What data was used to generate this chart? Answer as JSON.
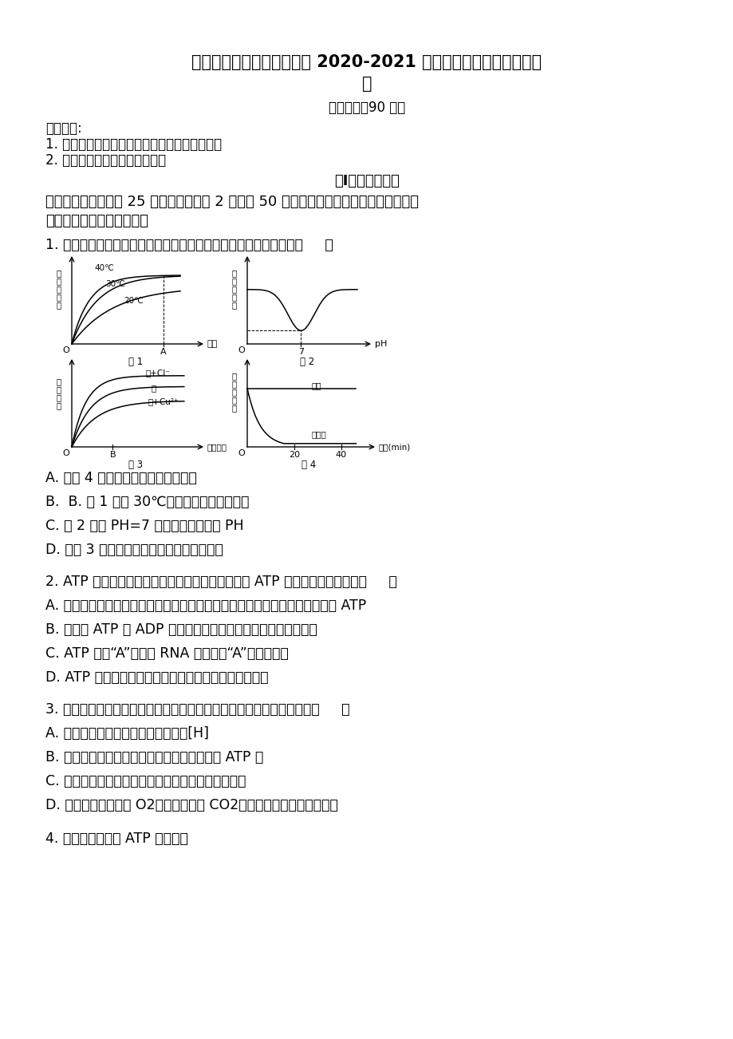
{
  "bg_color": "#ffffff",
  "title_line1": "安徽省淮北市树人高级中学 2020-2021 学年高一生物下学期期中试",
  "title_line2": "题",
  "exam_time": "考试时间：90 分钟",
  "notes_header": "注意事项:",
  "note1": "1. 答题前填写好自己的姓名、班级、考号等信息",
  "note2": "2. 请将答案正确填写在答题卡上",
  "section1_title": "第I卷（选择题）",
  "section1_intro": "一、选择题：本题共 25 个小题，每小题 2 分。共 50 分，在每小题给出的四个选项中，只",
  "section1_intro2": "有一项是符合题目要求的。",
  "q1": "1. 用某种酶进行有关实验的结果如图所示，下列有关说法错误的是（     ）",
  "q1_A": "A. 由图 4 实验结果可知酶具有专一性",
  "q1_B": "B.  B. 图 1 表明 30℃是该酶的最适催化温度",
  "q1_C": "C. 图 2 表明 PH=7 是该酶的最适催化 PH",
  "q1_D": "D. 由图 3 实验结果可知氯离子是酶的激活剂",
  "q2": "2. ATP 在生命活动中发挥着重要的作用，下列有关 ATP 的叙述，不正确的是（     ）",
  "q2_A": "A. 人体成熟的红细胞、蛙的红细胞、鸡的红细胞中均能进行的生理活动是合成 ATP",
  "q2_B": "B. 细胞内 ATP 与 ADP 相互转能量的供应机制，是生物界的共性",
  "q2_C": "C. ATP 中的'A'与构成 RNA 中的碱基'A'是同一物质",
  "q2_D": "D. ATP 是生物体内的直接能源物质，在细胞内含量很少",
  "q3": "3. 关于人体细胞以葡萄糖为底物进行的细胞呼吸过程的叙述，错误的是（     ）",
  "q3_A": "A. 细胞有氧呼吸和无氧呼吸都可产生[H]",
  "q3_B": "B. 细胞呼吸作用释放的能量只有一部分储存在 ATP 中",
  "q3_C": "C. 机体在剧烈运动时可通直接分解糖原释放部分能量",
  "q3_D": "D. 若细胞呼吸消耗的 O2量等于生成的 CO2量，则细胞只进行有氧呼吸",
  "q4": "4. 细胞中不能合成 ATP 的部位是"
}
